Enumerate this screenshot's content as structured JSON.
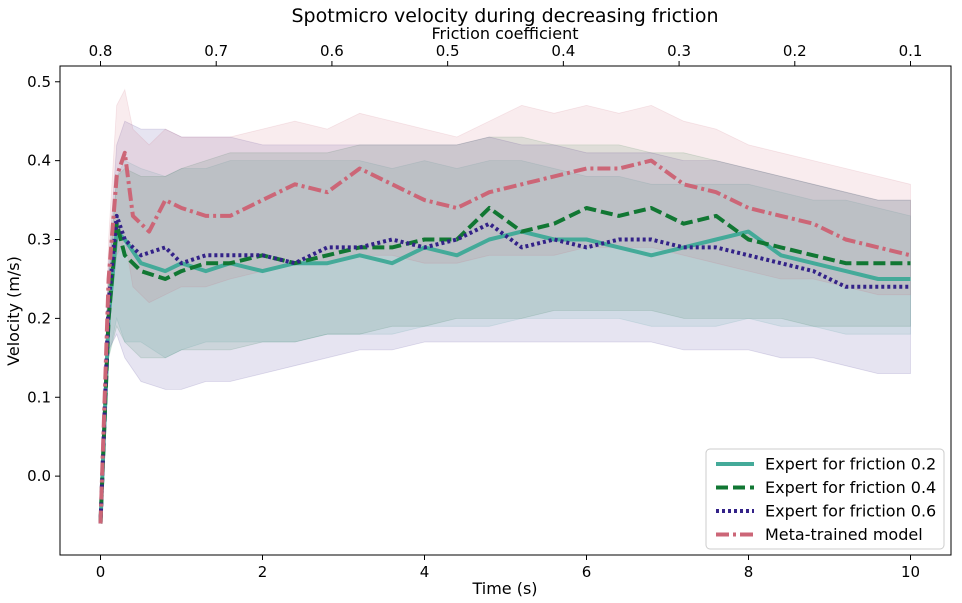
{
  "chart_data": {
    "type": "line",
    "title": "Spotmicro velocity during decreasing friction",
    "xlabel": "Time (s)",
    "ylabel": "Velocity (m/s)",
    "x2label": "Friction coefficient",
    "xlim": [
      -0.5,
      10.5
    ],
    "ylim": [
      -0.1,
      0.52
    ],
    "x_ticks": [
      0,
      2,
      4,
      6,
      8,
      10
    ],
    "x_tick_labels": [
      "0",
      "2",
      "4",
      "6",
      "8",
      "10"
    ],
    "y_ticks": [
      0.0,
      0.1,
      0.2,
      0.3,
      0.4,
      0.5
    ],
    "y_tick_labels": [
      "0.0",
      "0.1",
      "0.2",
      "0.3",
      "0.4",
      "0.5"
    ],
    "x2_ticks_at_time": [
      0,
      1.4286,
      2.8571,
      4.2857,
      5.7143,
      7.1429,
      8.5714,
      10
    ],
    "x2_tick_labels": [
      "0.8",
      "0.7",
      "0.6",
      "0.5",
      "0.4",
      "0.3",
      "0.2",
      "0.1"
    ],
    "grid": false,
    "legend_position": "bottom-right",
    "series": [
      {
        "name": "Expert for friction 0.2",
        "color": "#44aa99",
        "dash": "solid",
        "x": [
          0,
          0.1,
          0.2,
          0.3,
          0.5,
          0.8,
          1.0,
          1.3,
          1.6,
          2.0,
          2.4,
          2.8,
          3.2,
          3.6,
          4.0,
          4.4,
          4.8,
          5.2,
          5.6,
          6.0,
          6.4,
          6.8,
          7.2,
          7.6,
          8.0,
          8.4,
          8.8,
          9.2,
          9.6,
          10.0
        ],
        "y": [
          -0.06,
          0.2,
          0.31,
          0.3,
          0.27,
          0.26,
          0.27,
          0.26,
          0.27,
          0.26,
          0.27,
          0.27,
          0.28,
          0.27,
          0.29,
          0.28,
          0.3,
          0.31,
          0.3,
          0.3,
          0.29,
          0.28,
          0.29,
          0.3,
          0.31,
          0.28,
          0.27,
          0.26,
          0.25,
          0.25
        ],
        "band_lower": [
          -0.06,
          0.15,
          0.2,
          0.17,
          0.17,
          0.15,
          0.16,
          0.17,
          0.17,
          0.17,
          0.17,
          0.18,
          0.18,
          0.18,
          0.19,
          0.19,
          0.19,
          0.2,
          0.2,
          0.2,
          0.2,
          0.19,
          0.19,
          0.19,
          0.2,
          0.19,
          0.19,
          0.18,
          0.18,
          0.18
        ],
        "band_upper": [
          -0.06,
          0.25,
          0.38,
          0.4,
          0.39,
          0.38,
          0.39,
          0.39,
          0.4,
          0.4,
          0.4,
          0.4,
          0.4,
          0.39,
          0.4,
          0.39,
          0.4,
          0.4,
          0.39,
          0.38,
          0.38,
          0.37,
          0.37,
          0.37,
          0.37,
          0.36,
          0.35,
          0.35,
          0.34,
          0.33
        ]
      },
      {
        "name": "Expert for friction 0.4",
        "color": "#117733",
        "dash": "dashed",
        "x": [
          0,
          0.1,
          0.2,
          0.3,
          0.5,
          0.8,
          1.0,
          1.3,
          1.6,
          2.0,
          2.4,
          2.8,
          3.2,
          3.6,
          4.0,
          4.4,
          4.8,
          5.2,
          5.6,
          6.0,
          6.4,
          6.8,
          7.2,
          7.6,
          8.0,
          8.4,
          8.8,
          9.2,
          9.6,
          10.0
        ],
        "y": [
          -0.06,
          0.2,
          0.32,
          0.28,
          0.26,
          0.25,
          0.26,
          0.27,
          0.27,
          0.28,
          0.27,
          0.28,
          0.29,
          0.29,
          0.3,
          0.3,
          0.34,
          0.31,
          0.32,
          0.34,
          0.33,
          0.34,
          0.32,
          0.33,
          0.3,
          0.29,
          0.28,
          0.27,
          0.27,
          0.27
        ],
        "band_lower": [
          -0.06,
          0.15,
          0.19,
          0.17,
          0.15,
          0.15,
          0.16,
          0.16,
          0.16,
          0.17,
          0.17,
          0.18,
          0.18,
          0.19,
          0.19,
          0.2,
          0.2,
          0.2,
          0.21,
          0.21,
          0.21,
          0.21,
          0.2,
          0.2,
          0.2,
          0.2,
          0.19,
          0.19,
          0.19,
          0.19
        ],
        "band_upper": [
          -0.06,
          0.25,
          0.38,
          0.39,
          0.38,
          0.38,
          0.39,
          0.4,
          0.41,
          0.41,
          0.41,
          0.41,
          0.42,
          0.42,
          0.42,
          0.42,
          0.43,
          0.43,
          0.42,
          0.42,
          0.42,
          0.41,
          0.41,
          0.4,
          0.39,
          0.38,
          0.37,
          0.36,
          0.35,
          0.35
        ]
      },
      {
        "name": "Expert for friction 0.6",
        "color": "#332288",
        "dash": "dotted",
        "x": [
          0,
          0.1,
          0.2,
          0.3,
          0.5,
          0.8,
          1.0,
          1.3,
          1.6,
          2.0,
          2.4,
          2.8,
          3.2,
          3.6,
          4.0,
          4.4,
          4.8,
          5.2,
          5.6,
          6.0,
          6.4,
          6.8,
          7.2,
          7.6,
          8.0,
          8.4,
          8.8,
          9.2,
          9.6,
          10.0
        ],
        "y": [
          -0.06,
          0.22,
          0.33,
          0.3,
          0.28,
          0.29,
          0.27,
          0.28,
          0.28,
          0.28,
          0.27,
          0.29,
          0.29,
          0.3,
          0.29,
          0.3,
          0.32,
          0.29,
          0.3,
          0.29,
          0.3,
          0.3,
          0.29,
          0.29,
          0.28,
          0.27,
          0.26,
          0.24,
          0.24,
          0.24
        ],
        "band_lower": [
          -0.06,
          0.16,
          0.18,
          0.15,
          0.12,
          0.11,
          0.11,
          0.12,
          0.12,
          0.13,
          0.14,
          0.15,
          0.16,
          0.16,
          0.17,
          0.17,
          0.17,
          0.17,
          0.17,
          0.17,
          0.17,
          0.17,
          0.16,
          0.16,
          0.16,
          0.15,
          0.15,
          0.14,
          0.13,
          0.13
        ],
        "band_upper": [
          -0.06,
          0.27,
          0.42,
          0.45,
          0.44,
          0.44,
          0.43,
          0.43,
          0.43,
          0.42,
          0.42,
          0.42,
          0.42,
          0.42,
          0.42,
          0.42,
          0.43,
          0.42,
          0.42,
          0.41,
          0.41,
          0.41,
          0.4,
          0.4,
          0.39,
          0.38,
          0.37,
          0.36,
          0.35,
          0.35
        ]
      },
      {
        "name": "Meta-trained model",
        "color": "#cc6677",
        "dash": "dashdot",
        "x": [
          0,
          0.1,
          0.2,
          0.3,
          0.4,
          0.6,
          0.8,
          1.0,
          1.3,
          1.6,
          2.0,
          2.4,
          2.8,
          3.2,
          3.6,
          4.0,
          4.4,
          4.8,
          5.2,
          5.6,
          6.0,
          6.4,
          6.8,
          7.2,
          7.6,
          8.0,
          8.4,
          8.8,
          9.2,
          9.6,
          10.0
        ],
        "y": [
          -0.06,
          0.25,
          0.38,
          0.41,
          0.33,
          0.31,
          0.35,
          0.34,
          0.33,
          0.33,
          0.35,
          0.37,
          0.36,
          0.39,
          0.37,
          0.35,
          0.34,
          0.36,
          0.37,
          0.38,
          0.39,
          0.39,
          0.4,
          0.37,
          0.36,
          0.34,
          0.33,
          0.32,
          0.3,
          0.29,
          0.28
        ],
        "band_lower": [
          -0.06,
          0.2,
          0.28,
          0.3,
          0.24,
          0.22,
          0.23,
          0.24,
          0.24,
          0.25,
          0.26,
          0.27,
          0.27,
          0.28,
          0.28,
          0.27,
          0.27,
          0.28,
          0.28,
          0.28,
          0.29,
          0.29,
          0.29,
          0.28,
          0.27,
          0.26,
          0.25,
          0.25,
          0.24,
          0.23,
          0.23
        ],
        "band_upper": [
          -0.06,
          0.3,
          0.47,
          0.49,
          0.44,
          0.42,
          0.44,
          0.43,
          0.43,
          0.43,
          0.44,
          0.45,
          0.44,
          0.46,
          0.45,
          0.44,
          0.43,
          0.45,
          0.47,
          0.46,
          0.47,
          0.46,
          0.47,
          0.45,
          0.44,
          0.42,
          0.41,
          0.4,
          0.39,
          0.38,
          0.37
        ]
      }
    ]
  }
}
